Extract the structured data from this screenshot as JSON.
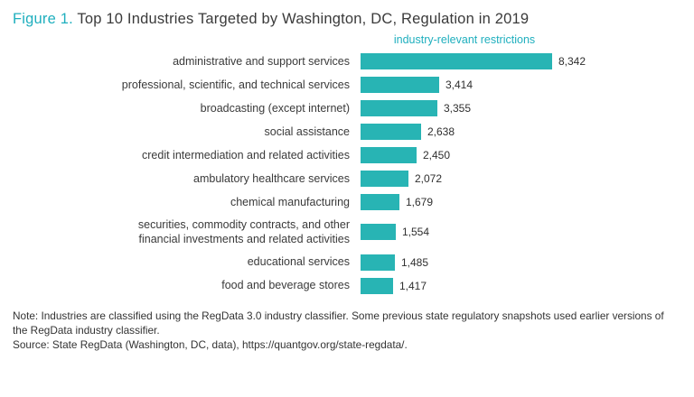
{
  "title": {
    "prefix": "Figure 1.",
    "text": " Top 10 Industries Targeted by Washington, DC, Regulation in 2019"
  },
  "colors": {
    "accent": "#1fafbe",
    "bar": "#28b4b4",
    "text": "#3a3a3a"
  },
  "chart_data": {
    "type": "bar",
    "orientation": "horizontal",
    "title": "Top 10 Industries Targeted by Washington, DC, Regulation in 2019",
    "series_label": "industry-relevant restrictions",
    "categories": [
      "administrative and support services",
      "professional, scientific, and technical services",
      "broadcasting (except internet)",
      "social assistance",
      "credit intermediation and related activities",
      "ambulatory healthcare services",
      "chemical manufacturing",
      "securities, commodity contracts, and other financial investments and related activities",
      "educational services",
      "food and beverage stores"
    ],
    "values": [
      8342,
      3414,
      3355,
      2638,
      2450,
      2072,
      1679,
      1554,
      1485,
      1417
    ],
    "value_labels": [
      "8,342",
      "3,414",
      "3,355",
      "2,638",
      "2,450",
      "2,072",
      "1,679",
      "1,554",
      "1,485",
      "1,417"
    ],
    "xlim": [
      0,
      8342
    ],
    "grid": false,
    "legend_position": "top",
    "bar_color": "#28b4b4"
  },
  "notes": {
    "note": "Note: Industries are classified using the RegData 3.0 industry classifier. Some previous state regulatory snapshots used earlier versions of the RegData industry classifier.",
    "source": "Source: State RegData (Washington, DC, data), https://quantgov.org/state-regdata/."
  }
}
